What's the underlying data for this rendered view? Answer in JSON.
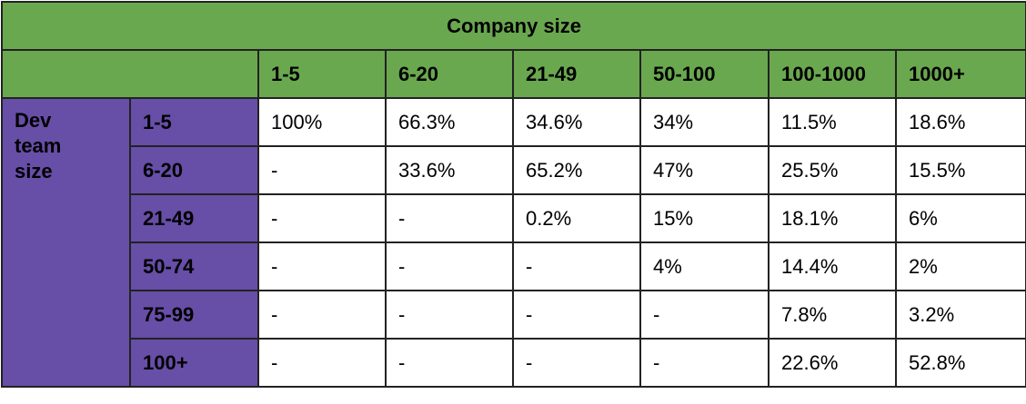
{
  "table": {
    "title": "Company size",
    "row_group_label": "Dev team size",
    "columns": [
      "1-5",
      "6-20",
      "21-49",
      "50-100",
      "100-1000",
      "1000+"
    ],
    "rows": [
      {
        "label": "1-5",
        "cells": [
          "100%",
          "66.3%",
          "34.6%",
          "34%",
          "11.5%",
          "18.6%"
        ]
      },
      {
        "label": "6-20",
        "cells": [
          "-",
          "33.6%",
          "65.2%",
          "47%",
          "25.5%",
          "15.5%"
        ]
      },
      {
        "label": "21-49",
        "cells": [
          "-",
          "-",
          "0.2%",
          "15%",
          "18.1%",
          "6%"
        ]
      },
      {
        "label": "50-74",
        "cells": [
          "-",
          "-",
          "-",
          "4%",
          "14.4%",
          "2%"
        ]
      },
      {
        "label": "75-99",
        "cells": [
          "-",
          "-",
          "-",
          "-",
          "7.8%",
          "3.2%"
        ]
      },
      {
        "label": "100+",
        "cells": [
          "-",
          "-",
          "-",
          "-",
          "22.6%",
          "52.8%"
        ]
      }
    ]
  }
}
